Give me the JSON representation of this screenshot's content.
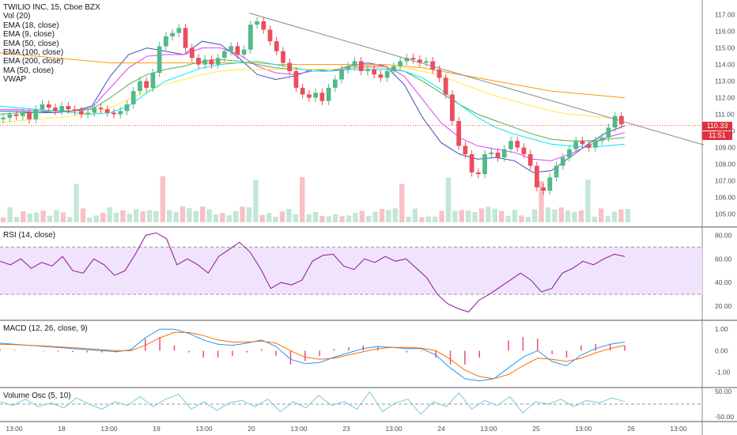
{
  "header": {
    "symbol_line": "TWILIO INC, 15, Cboe BZX",
    "indicators": [
      "Vol (20)",
      "EMA (18, close)",
      "EMA (9, close)",
      "EMA (50, close)",
      "EMA (100, close)",
      "EMA (200, close)",
      "MA (50, close)",
      "VWAP"
    ]
  },
  "price_tags": {
    "last_price": "110.33",
    "countdown": "11:51"
  },
  "panes": {
    "rsi_label": "RSI (14, close)",
    "macd_label": "MACD (12, 26, close, 9)",
    "volosc_label": "Volume Osc (5, 10)"
  },
  "colors": {
    "up": "#53b987",
    "down": "#eb4d5c",
    "rsi_band": "#efe4fb",
    "rsi_line": "#8e1599",
    "macd": "#2196f3",
    "signal": "#ff6d00",
    "vol_osc": "#77c9d9"
  },
  "chart_data": [
    {
      "type": "candlestick",
      "title": "TWILIO INC, 15, Cboe BZX",
      "ylim": [
        104.5,
        117.6
      ],
      "y_ticks": [
        105.0,
        106.0,
        107.0,
        108.0,
        109.0,
        110.0,
        111.0,
        112.0,
        113.0,
        114.0,
        115.0,
        116.0,
        117.0
      ],
      "x_tick_labels": [
        "13:00",
        "18",
        "13:00",
        "19",
        "13:00",
        "20",
        "13:00",
        "23",
        "13:00",
        "24",
        "13:00",
        "25",
        "13:00",
        "26",
        "13:00"
      ],
      "last_price": 110.33,
      "close_series": [
        110.8,
        111.0,
        110.9,
        111.1,
        110.7,
        111.3,
        111.6,
        111.4,
        111.2,
        111.5,
        111.3,
        111.2,
        111.0,
        111.1,
        111.4,
        111.3,
        111.1,
        111.0,
        111.2,
        111.6,
        112.4,
        113.0,
        112.6,
        113.5,
        115.1,
        115.7,
        115.9,
        116.2,
        115.0,
        114.4,
        114.0,
        114.3,
        114.0,
        114.4,
        114.8,
        115.1,
        114.6,
        114.9,
        116.4,
        116.6,
        116.1,
        115.4,
        114.8,
        114.1,
        113.6,
        112.6,
        112.2,
        112.0,
        112.3,
        111.8,
        112.6,
        113.1,
        113.7,
        113.9,
        114.2,
        113.6,
        113.7,
        113.4,
        113.2,
        113.6,
        113.9,
        114.2,
        114.4,
        114.3,
        114.1,
        114.2,
        113.7,
        113.2,
        112.2,
        110.6,
        109.1,
        108.6,
        107.5,
        107.4,
        108.6,
        108.7,
        108.4,
        108.9,
        109.4,
        109.0,
        108.6,
        107.9,
        106.6,
        106.4,
        107.2,
        107.9,
        108.4,
        108.9,
        109.4,
        109.2,
        109.0,
        109.4,
        109.6,
        110.2,
        110.9,
        110.4
      ],
      "series": [
        {
          "name": "EMA (9, close)",
          "values": [
            111.2,
            111.2,
            111.1,
            111.1,
            111.2,
            111.5,
            113.3,
            114.6,
            115.0,
            114.8,
            114.6,
            115.4,
            115.2,
            114.4,
            113.4,
            113.1,
            113.3,
            113.7,
            113.6,
            113.9,
            114.1,
            113.9,
            112.8,
            110.8,
            109.3,
            108.6,
            108.3,
            108.4,
            108.2,
            107.5,
            107.6,
            108.4,
            109.2,
            109.9,
            110.3
          ]
        },
        {
          "name": "EMA (18, close)",
          "values": [
            111.3,
            111.3,
            111.2,
            111.2,
            111.2,
            111.4,
            112.6,
            113.8,
            114.5,
            114.6,
            114.6,
            115.0,
            115.0,
            114.6,
            113.9,
            113.5,
            113.4,
            113.6,
            113.6,
            113.8,
            113.9,
            113.9,
            113.3,
            111.9,
            110.5,
            109.6,
            109.1,
            108.9,
            108.7,
            108.3,
            108.2,
            108.6,
            109.1,
            109.6,
            109.9
          ]
        },
        {
          "name": "EMA (50, close)",
          "values": [
            111.0,
            111.1,
            111.1,
            111.2,
            111.2,
            111.3,
            112.0,
            112.8,
            113.4,
            113.7,
            113.9,
            114.2,
            114.3,
            114.2,
            114.0,
            113.8,
            113.7,
            113.7,
            113.7,
            113.8,
            113.8,
            113.8,
            113.6,
            113.0,
            112.3,
            111.6,
            111.0,
            110.6,
            110.2,
            109.8,
            109.5,
            109.4,
            109.4,
            109.5,
            109.6
          ]
        },
        {
          "name": "EMA (100, close)",
          "values": [
            110.5,
            110.6,
            110.7,
            110.8,
            110.9,
            111.0,
            111.4,
            111.9,
            112.4,
            112.8,
            113.1,
            113.4,
            113.6,
            113.7,
            113.7,
            113.7,
            113.7,
            113.7,
            113.7,
            113.8,
            113.8,
            113.8,
            113.8,
            113.6,
            113.3,
            112.9,
            112.5,
            112.1,
            111.8,
            111.5,
            111.2,
            111.0,
            110.9,
            110.8,
            110.7
          ]
        },
        {
          "name": "EMA (200, close)",
          "values": [
            114.7,
            114.6,
            114.5,
            114.4,
            114.3,
            114.2,
            114.1,
            114.1,
            114.1,
            114.1,
            114.1,
            114.1,
            114.1,
            114.1,
            114.1,
            114.0,
            114.0,
            114.0,
            114.0,
            114.0,
            114.0,
            114.0,
            113.9,
            113.8,
            113.6,
            113.4,
            113.2,
            113.0,
            112.8,
            112.6,
            112.4,
            112.3,
            112.2,
            112.1,
            112.0
          ]
        },
        {
          "name": "MA (50, close)",
          "values": [
            111.5,
            111.4,
            111.3,
            111.2,
            111.1,
            111.0,
            111.1,
            111.5,
            112.3,
            113.0,
            113.4,
            113.8,
            114.0,
            114.1,
            114.2,
            114.0,
            113.8,
            113.6,
            113.6,
            113.7,
            113.7,
            113.7,
            113.6,
            113.2,
            112.5,
            111.6,
            110.8,
            110.2,
            109.8,
            109.5,
            109.2,
            109.1,
            109.0,
            109.1,
            109.2
          ]
        }
      ],
      "trendline": [
        [
          117.1
        ],
        [
          110.3
        ]
      ]
    },
    {
      "type": "line",
      "title": "RSI (14, close)",
      "ylim": [
        10,
        85
      ],
      "y_ticks": [
        20.0,
        40.0,
        60.0,
        80.0
      ],
      "band": [
        30,
        70
      ],
      "values": [
        58,
        55,
        60,
        52,
        57,
        54,
        62,
        50,
        48,
        60,
        55,
        46,
        50,
        64,
        80,
        82,
        77,
        55,
        60,
        55,
        48,
        62,
        68,
        74,
        66,
        52,
        35,
        40,
        38,
        42,
        58,
        63,
        64,
        54,
        51,
        60,
        57,
        62,
        58,
        60,
        52,
        44,
        30,
        22,
        18,
        15,
        25,
        30,
        36,
        42,
        48,
        42,
        32,
        35,
        48,
        52,
        58,
        55,
        60,
        64,
        62
      ]
    },
    {
      "type": "line",
      "title": "MACD (12, 26, close, 9)",
      "ylim": [
        -1.6,
        1.3
      ],
      "y_ticks": [
        -1.0,
        0.0,
        1.0
      ],
      "series": [
        {
          "name": "MACD",
          "values": [
            0.35,
            0.3,
            0.25,
            0.2,
            0.15,
            0.1,
            0.05,
            0.0,
            -0.05,
            0.05,
            0.6,
            1.0,
            1.0,
            0.8,
            0.5,
            0.3,
            0.25,
            0.35,
            0.5,
            0.2,
            -0.4,
            -0.6,
            -0.55,
            -0.3,
            -0.1,
            0.1,
            0.2,
            0.15,
            0.1,
            0.1,
            -0.2,
            -0.8,
            -1.3,
            -1.4,
            -1.3,
            -0.8,
            -0.3,
            0.0,
            -0.5,
            -0.7,
            -0.2,
            0.1,
            0.3,
            0.4
          ]
        },
        {
          "name": "Signal",
          "values": [
            0.3,
            0.28,
            0.25,
            0.22,
            0.18,
            0.14,
            0.1,
            0.05,
            0.0,
            0.0,
            0.25,
            0.6,
            0.85,
            0.85,
            0.7,
            0.5,
            0.4,
            0.4,
            0.45,
            0.35,
            0.0,
            -0.3,
            -0.4,
            -0.35,
            -0.2,
            -0.05,
            0.1,
            0.15,
            0.15,
            0.12,
            0.0,
            -0.4,
            -0.9,
            -1.2,
            -1.3,
            -1.1,
            -0.7,
            -0.35,
            -0.4,
            -0.5,
            -0.35,
            -0.1,
            0.1,
            0.25
          ]
        }
      ]
    },
    {
      "type": "line",
      "title": "Volume Osc (5, 10)",
      "ylim": [
        -60,
        60
      ],
      "y_ticks": [
        50.0,
        -50.0
      ],
      "values": [
        10,
        -5,
        20,
        -10,
        5,
        -15,
        25,
        0,
        -20,
        10,
        -5,
        30,
        -10,
        20,
        40,
        -20,
        10,
        -25,
        5,
        15,
        -10,
        20,
        -30,
        10,
        -15,
        35,
        -5,
        10,
        -20,
        50,
        -30,
        5,
        20,
        -40,
        10,
        -10,
        45,
        -20,
        15,
        -5,
        30,
        -35,
        10,
        0,
        20,
        -10,
        15,
        5,
        25,
        10
      ]
    }
  ]
}
